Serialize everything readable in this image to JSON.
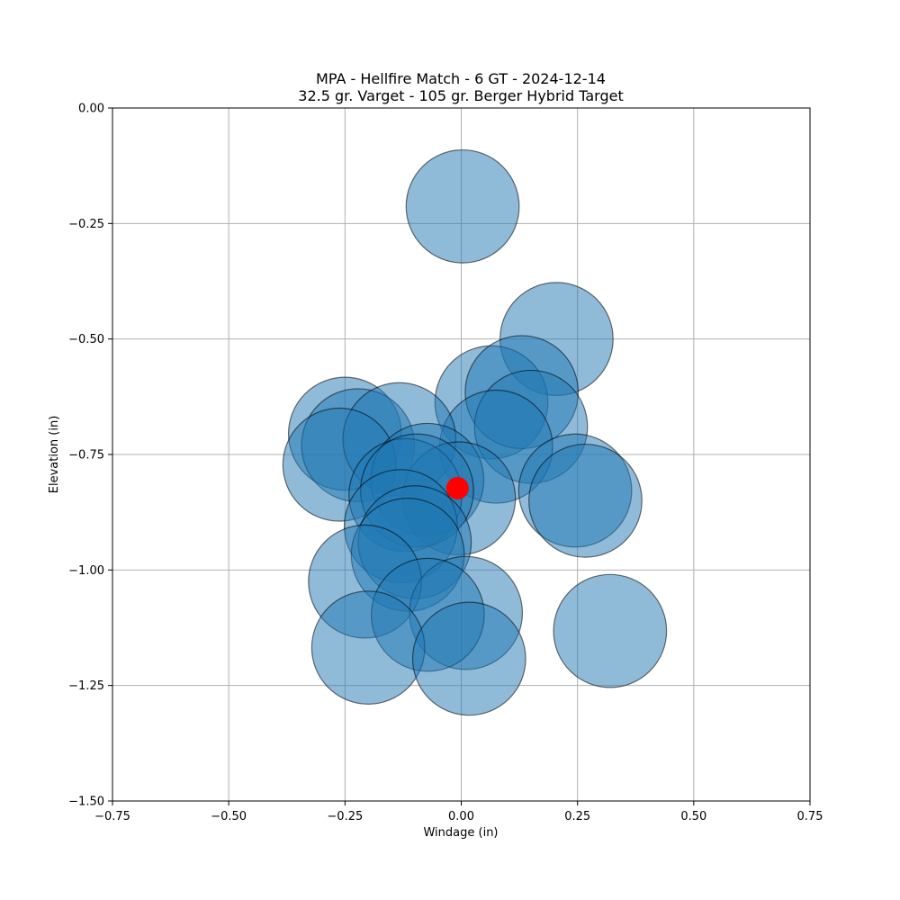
{
  "chart_data": {
    "type": "scatter",
    "title": "MPA - Hellfire Match - 6 GT - 2024-12-14",
    "subtitle": "32.5 gr. Varget - 105 gr. Berger Hybrid Target",
    "xlabel": "Windage (in)",
    "ylabel": "Elevation (in)",
    "xlim": [
      -0.75,
      0.75
    ],
    "ylim": [
      -1.5,
      0.0
    ],
    "xticks": [
      -0.75,
      -0.5,
      -0.25,
      0.0,
      0.25,
      0.5,
      0.75
    ],
    "xtick_labels": [
      "−0.75",
      "−0.50",
      "−0.25",
      "0.00",
      "0.25",
      "0.50",
      "0.75"
    ],
    "yticks": [
      0.0,
      -0.25,
      -0.5,
      -0.75,
      -1.0,
      -1.25,
      -1.5
    ],
    "ytick_labels": [
      "0.00",
      "−0.25",
      "−0.50",
      "−0.75",
      "−1.00",
      "−1.25",
      "−1.50"
    ],
    "grid": true,
    "shot_diameter_in": 0.243,
    "shot_color": "#1f77b4",
    "center_color": "#ff0000",
    "shots": [
      {
        "x": 0.003,
        "y": -0.213
      },
      {
        "x": 0.205,
        "y": -0.5
      },
      {
        "x": 0.065,
        "y": -0.637
      },
      {
        "x": 0.13,
        "y": -0.615
      },
      {
        "x": 0.15,
        "y": -0.69
      },
      {
        "x": 0.075,
        "y": -0.733
      },
      {
        "x": -0.25,
        "y": -0.705
      },
      {
        "x": -0.222,
        "y": -0.73
      },
      {
        "x": -0.133,
        "y": -0.717
      },
      {
        "x": -0.262,
        "y": -0.772
      },
      {
        "x": -0.073,
        "y": -0.805
      },
      {
        "x": -0.005,
        "y": -0.845
      },
      {
        "x": -0.12,
        "y": -0.838
      },
      {
        "x": -0.095,
        "y": -0.828
      },
      {
        "x": 0.245,
        "y": -0.828
      },
      {
        "x": 0.267,
        "y": -0.85
      },
      {
        "x": -0.13,
        "y": -0.905
      },
      {
        "x": -0.1,
        "y": -0.94
      },
      {
        "x": -0.115,
        "y": -0.967
      },
      {
        "x": -0.207,
        "y": -1.025
      },
      {
        "x": 0.01,
        "y": -1.093
      },
      {
        "x": -0.072,
        "y": -1.097
      },
      {
        "x": 0.32,
        "y": -1.132
      },
      {
        "x": -0.2,
        "y": -1.168
      },
      {
        "x": 0.017,
        "y": -1.192
      }
    ],
    "center": {
      "x": -0.008,
      "y": -0.823
    }
  }
}
